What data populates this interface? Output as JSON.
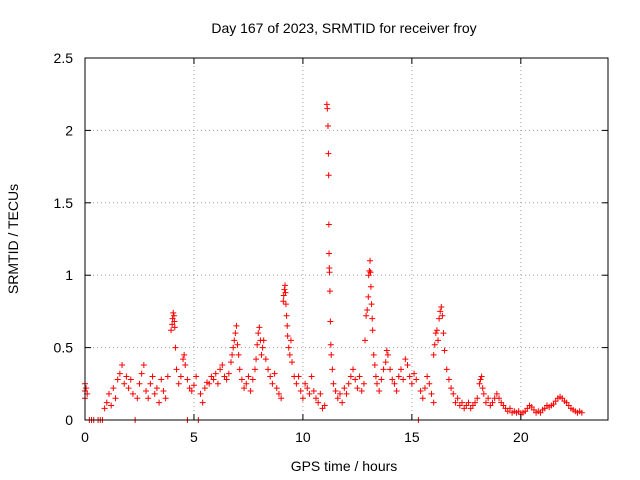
{
  "chart_data": {
    "type": "scatter",
    "title": "Day 167 of 2023, SRMTID for receiver froy",
    "xlabel": "GPS time / hours",
    "ylabel": "SRMTID / TECUs",
    "xlim": [
      0,
      24
    ],
    "ylim": [
      0,
      2.5
    ],
    "grid": true,
    "legend": "none",
    "x_ticks": [
      0,
      5,
      10,
      15,
      20
    ],
    "x_tick_labels": [
      "0",
      "5",
      "10",
      "15",
      "20"
    ],
    "y_ticks": [
      0,
      0.5,
      1,
      1.5,
      2,
      2.5
    ],
    "y_tick_labels": [
      "0",
      "0.5",
      "1",
      "1.5",
      "2",
      "2.5"
    ],
    "marker": "plus",
    "color": "#ff0000",
    "series": [
      {
        "name": "SRMTID",
        "points": [
          [
            0.0,
            0.25
          ],
          [
            0.0,
            0.2
          ],
          [
            0.0,
            0.15
          ],
          [
            0.05,
            0.22
          ],
          [
            0.1,
            0.18
          ],
          [
            0.2,
            0.0
          ],
          [
            0.3,
            0.0
          ],
          [
            0.4,
            0.0
          ],
          [
            0.6,
            0.0
          ],
          [
            0.7,
            0.0
          ],
          [
            0.8,
            0.0
          ],
          [
            2.3,
            0.0
          ],
          [
            4.7,
            0.0
          ],
          [
            5.2,
            0.0
          ],
          [
            15.3,
            0.0
          ],
          [
            0.9,
            0.08
          ],
          [
            1.0,
            0.12
          ],
          [
            1.1,
            0.18
          ],
          [
            1.2,
            0.1
          ],
          [
            1.3,
            0.22
          ],
          [
            1.4,
            0.15
          ],
          [
            1.5,
            0.28
          ],
          [
            1.6,
            0.32
          ],
          [
            1.7,
            0.38
          ],
          [
            1.8,
            0.25
          ],
          [
            1.9,
            0.3
          ],
          [
            2.0,
            0.22
          ],
          [
            2.1,
            0.28
          ],
          [
            2.2,
            0.18
          ],
          [
            2.4,
            0.15
          ],
          [
            2.5,
            0.25
          ],
          [
            2.6,
            0.32
          ],
          [
            2.7,
            0.38
          ],
          [
            2.8,
            0.2
          ],
          [
            2.9,
            0.15
          ],
          [
            3.0,
            0.25
          ],
          [
            3.1,
            0.3
          ],
          [
            3.2,
            0.18
          ],
          [
            3.3,
            0.22
          ],
          [
            3.4,
            0.12
          ],
          [
            3.5,
            0.28
          ],
          [
            3.6,
            0.2
          ],
          [
            3.7,
            0.15
          ],
          [
            3.8,
            0.3
          ],
          [
            3.95,
            0.62
          ],
          [
            4.0,
            0.66
          ],
          [
            4.02,
            0.7
          ],
          [
            4.05,
            0.74
          ],
          [
            4.08,
            0.72
          ],
          [
            4.1,
            0.68
          ],
          [
            4.12,
            0.64
          ],
          [
            4.15,
            0.5
          ],
          [
            4.2,
            0.35
          ],
          [
            4.3,
            0.25
          ],
          [
            4.4,
            0.3
          ],
          [
            4.5,
            0.42
          ],
          [
            4.55,
            0.45
          ],
          [
            4.6,
            0.38
          ],
          [
            4.7,
            0.28
          ],
          [
            4.8,
            0.22
          ],
          [
            4.9,
            0.2
          ],
          [
            5.0,
            0.24
          ],
          [
            5.1,
            0.3
          ],
          [
            5.3,
            0.18
          ],
          [
            5.4,
            0.12
          ],
          [
            5.5,
            0.22
          ],
          [
            5.6,
            0.26
          ],
          [
            5.7,
            0.25
          ],
          [
            5.8,
            0.3
          ],
          [
            5.9,
            0.28
          ],
          [
            6.0,
            0.32
          ],
          [
            6.1,
            0.25
          ],
          [
            6.2,
            0.35
          ],
          [
            6.3,
            0.38
          ],
          [
            6.4,
            0.3
          ],
          [
            6.5,
            0.28
          ],
          [
            6.6,
            0.32
          ],
          [
            6.7,
            0.4
          ],
          [
            6.75,
            0.45
          ],
          [
            6.8,
            0.5
          ],
          [
            6.85,
            0.55
          ],
          [
            6.9,
            0.6
          ],
          [
            6.95,
            0.65
          ],
          [
            7.0,
            0.52
          ],
          [
            7.05,
            0.45
          ],
          [
            7.1,
            0.35
          ],
          [
            7.2,
            0.28
          ],
          [
            7.3,
            0.22
          ],
          [
            7.4,
            0.25
          ],
          [
            7.5,
            0.3
          ],
          [
            7.6,
            0.2
          ],
          [
            7.7,
            0.28
          ],
          [
            7.8,
            0.35
          ],
          [
            7.85,
            0.42
          ],
          [
            7.9,
            0.52
          ],
          [
            7.95,
            0.6
          ],
          [
            8.0,
            0.64
          ],
          [
            8.05,
            0.55
          ],
          [
            8.1,
            0.45
          ],
          [
            8.15,
            0.5
          ],
          [
            8.2,
            0.55
          ],
          [
            8.3,
            0.42
          ],
          [
            8.4,
            0.35
          ],
          [
            8.5,
            0.3
          ],
          [
            8.6,
            0.25
          ],
          [
            8.7,
            0.32
          ],
          [
            8.8,
            0.22
          ],
          [
            8.9,
            0.18
          ],
          [
            9.0,
            0.15
          ],
          [
            9.1,
            0.82
          ],
          [
            9.12,
            0.86
          ],
          [
            9.15,
            0.9
          ],
          [
            9.18,
            0.93
          ],
          [
            9.2,
            0.88
          ],
          [
            9.22,
            0.8
          ],
          [
            9.25,
            0.72
          ],
          [
            9.28,
            0.65
          ],
          [
            9.3,
            0.58
          ],
          [
            9.35,
            0.5
          ],
          [
            9.4,
            0.45
          ],
          [
            9.45,
            0.55
          ],
          [
            9.5,
            0.4
          ],
          [
            9.6,
            0.3
          ],
          [
            9.7,
            0.25
          ],
          [
            9.8,
            0.3
          ],
          [
            9.9,
            0.2
          ],
          [
            10.0,
            0.15
          ],
          [
            10.1,
            0.25
          ],
          [
            10.2,
            0.22
          ],
          [
            10.3,
            0.18
          ],
          [
            10.4,
            0.3
          ],
          [
            10.5,
            0.2
          ],
          [
            10.6,
            0.15
          ],
          [
            10.7,
            0.12
          ],
          [
            10.8,
            0.18
          ],
          [
            10.9,
            0.08
          ],
          [
            11.0,
            0.1
          ],
          [
            11.1,
            2.18
          ],
          [
            11.12,
            2.15
          ],
          [
            11.15,
            2.03
          ],
          [
            11.17,
            1.84
          ],
          [
            11.18,
            1.69
          ],
          [
            11.19,
            1.35
          ],
          [
            11.2,
            1.15
          ],
          [
            11.21,
            1.05
          ],
          [
            11.22,
            1.02
          ],
          [
            11.24,
            0.89
          ],
          [
            11.26,
            0.68
          ],
          [
            11.28,
            0.52
          ],
          [
            11.3,
            0.45
          ],
          [
            11.35,
            0.35
          ],
          [
            11.4,
            0.25
          ],
          [
            11.5,
            0.2
          ],
          [
            11.6,
            0.15
          ],
          [
            11.7,
            0.18
          ],
          [
            11.8,
            0.12
          ],
          [
            11.9,
            0.22
          ],
          [
            12.0,
            0.18
          ],
          [
            12.1,
            0.25
          ],
          [
            12.2,
            0.3
          ],
          [
            12.3,
            0.35
          ],
          [
            12.4,
            0.28
          ],
          [
            12.5,
            0.22
          ],
          [
            12.6,
            0.3
          ],
          [
            12.7,
            0.2
          ],
          [
            12.8,
            0.25
          ],
          [
            12.85,
            0.55
          ],
          [
            12.9,
            0.72
          ],
          [
            12.95,
            0.76
          ],
          [
            13.0,
            0.85
          ],
          [
            13.02,
            1.0
          ],
          [
            13.05,
            1.03
          ],
          [
            13.08,
            1.1
          ],
          [
            13.1,
            1.02
          ],
          [
            13.12,
            0.92
          ],
          [
            13.15,
            0.8
          ],
          [
            13.18,
            0.7
          ],
          [
            13.2,
            0.62
          ],
          [
            13.25,
            0.45
          ],
          [
            13.3,
            0.38
          ],
          [
            13.35,
            0.3
          ],
          [
            13.4,
            0.25
          ],
          [
            13.5,
            0.2
          ],
          [
            13.6,
            0.28
          ],
          [
            13.7,
            0.35
          ],
          [
            13.8,
            0.4
          ],
          [
            13.85,
            0.48
          ],
          [
            13.9,
            0.45
          ],
          [
            14.0,
            0.35
          ],
          [
            14.1,
            0.28
          ],
          [
            14.2,
            0.25
          ],
          [
            14.3,
            0.2
          ],
          [
            14.4,
            0.3
          ],
          [
            14.5,
            0.35
          ],
          [
            14.6,
            0.28
          ],
          [
            14.7,
            0.42
          ],
          [
            14.8,
            0.38
          ],
          [
            14.9,
            0.3
          ],
          [
            15.0,
            0.25
          ],
          [
            15.1,
            0.32
          ],
          [
            15.2,
            0.28
          ],
          [
            15.4,
            0.2
          ],
          [
            15.5,
            0.15
          ],
          [
            15.6,
            0.22
          ],
          [
            15.7,
            0.3
          ],
          [
            15.8,
            0.25
          ],
          [
            15.9,
            0.18
          ],
          [
            16.0,
            0.12
          ],
          [
            16.0,
            0.45
          ],
          [
            16.05,
            0.52
          ],
          [
            16.1,
            0.6
          ],
          [
            16.15,
            0.62
          ],
          [
            16.2,
            0.55
          ],
          [
            16.25,
            0.7
          ],
          [
            16.3,
            0.75
          ],
          [
            16.35,
            0.78
          ],
          [
            16.4,
            0.72
          ],
          [
            16.45,
            0.6
          ],
          [
            16.5,
            0.48
          ],
          [
            16.6,
            0.35
          ],
          [
            16.7,
            0.28
          ],
          [
            16.8,
            0.22
          ],
          [
            16.9,
            0.18
          ],
          [
            17.0,
            0.12
          ],
          [
            17.1,
            0.15
          ],
          [
            17.2,
            0.1
          ],
          [
            17.3,
            0.12
          ],
          [
            17.4,
            0.08
          ],
          [
            17.5,
            0.1
          ],
          [
            17.6,
            0.12
          ],
          [
            17.7,
            0.08
          ],
          [
            17.8,
            0.1
          ],
          [
            17.9,
            0.12
          ],
          [
            18.0,
            0.15
          ],
          [
            18.1,
            0.25
          ],
          [
            18.15,
            0.28
          ],
          [
            18.2,
            0.3
          ],
          [
            18.25,
            0.22
          ],
          [
            18.3,
            0.18
          ],
          [
            18.4,
            0.12
          ],
          [
            18.5,
            0.15
          ],
          [
            18.6,
            0.1
          ],
          [
            18.7,
            0.12
          ],
          [
            18.8,
            0.15
          ],
          [
            18.9,
            0.18
          ],
          [
            19.0,
            0.15
          ],
          [
            19.1,
            0.12
          ],
          [
            19.2,
            0.1
          ],
          [
            19.3,
            0.08
          ],
          [
            19.4,
            0.06
          ],
          [
            19.5,
            0.08
          ],
          [
            19.6,
            0.05
          ],
          [
            19.7,
            0.06
          ],
          [
            19.8,
            0.05
          ],
          [
            19.9,
            0.06
          ],
          [
            20.0,
            0.04
          ],
          [
            20.1,
            0.05
          ],
          [
            20.2,
            0.06
          ],
          [
            20.3,
            0.08
          ],
          [
            20.4,
            0.1
          ],
          [
            20.5,
            0.09
          ],
          [
            20.6,
            0.07
          ],
          [
            20.7,
            0.05
          ],
          [
            20.8,
            0.06
          ],
          [
            20.9,
            0.05
          ],
          [
            21.0,
            0.07
          ],
          [
            21.1,
            0.08
          ],
          [
            21.2,
            0.1
          ],
          [
            21.3,
            0.09
          ],
          [
            21.4,
            0.1
          ],
          [
            21.5,
            0.11
          ],
          [
            21.6,
            0.13
          ],
          [
            21.7,
            0.15
          ],
          [
            21.8,
            0.16
          ],
          [
            21.9,
            0.15
          ],
          [
            22.0,
            0.13
          ],
          [
            22.1,
            0.12
          ],
          [
            22.2,
            0.1
          ],
          [
            22.3,
            0.08
          ],
          [
            22.4,
            0.07
          ],
          [
            22.5,
            0.06
          ],
          [
            22.6,
            0.05
          ],
          [
            22.7,
            0.06
          ],
          [
            22.8,
            0.05
          ]
        ]
      }
    ]
  }
}
